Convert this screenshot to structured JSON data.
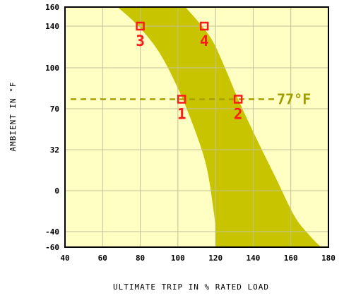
{
  "chart_data": {
    "type": "area",
    "xlabel": "ULTIMATE TRIP IN % RATED LOAD",
    "ylabel": "AMBIENT IN °F",
    "x_ticks": [
      40,
      60,
      80,
      100,
      120,
      140,
      160,
      180
    ],
    "y_ticks": [
      160,
      140,
      100,
      70,
      32,
      0,
      -40,
      -60
    ],
    "xlim": [
      40,
      180
    ],
    "ylim": [
      -60,
      160
    ],
    "grid": true,
    "band": {
      "left_edge": [
        [
          68,
          160
        ],
        [
          79,
          140
        ],
        [
          90,
          115
        ],
        [
          100,
          85
        ],
        [
          108,
          55
        ],
        [
          115,
          20
        ],
        [
          119,
          -20
        ],
        [
          120,
          -40
        ],
        [
          120,
          -60
        ]
      ],
      "right_edge": [
        [
          104,
          160
        ],
        [
          117,
          130
        ],
        [
          125,
          100
        ],
        [
          132,
          77
        ],
        [
          141,
          45
        ],
        [
          152,
          10
        ],
        [
          162,
          -25
        ],
        [
          170,
          -45
        ],
        [
          176,
          -60
        ]
      ]
    },
    "reference_line": {
      "y": 77,
      "label": "77°F"
    },
    "points": [
      {
        "label": "1",
        "x": 102,
        "y": 77
      },
      {
        "label": "2",
        "x": 132,
        "y": 77
      },
      {
        "label": "3",
        "x": 80,
        "y": 140
      },
      {
        "label": "4",
        "x": 114,
        "y": 140
      }
    ],
    "colors": {
      "plot_background": "#ffffc4",
      "band": "#c8c400",
      "grid": "#c4c094",
      "marker": "#ff1a1a",
      "reference_line": "#a8a000",
      "reference_text": "#a09c00"
    }
  }
}
